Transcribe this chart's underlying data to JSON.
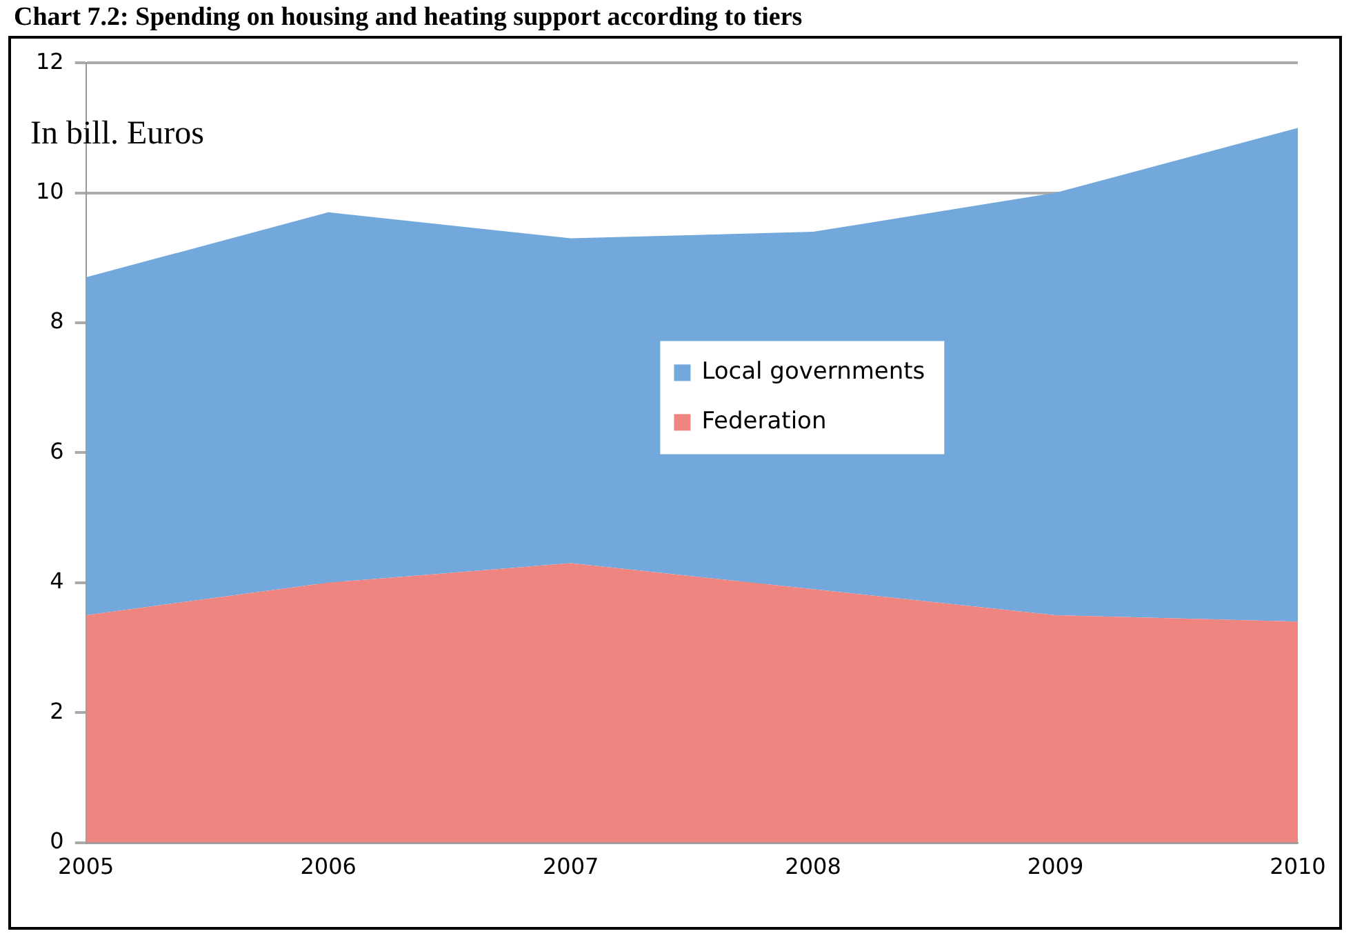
{
  "chart_data": {
    "type": "area",
    "title": "Chart 7.2: Spending on housing and heating support according to tiers",
    "ylabel": "In bill. Euros",
    "categories": [
      "2005",
      "2006",
      "2007",
      "2008",
      "2009",
      "2010"
    ],
    "stacked": true,
    "series": [
      {
        "name": "Federation",
        "color": "#ee8580",
        "values": [
          3.5,
          4.0,
          4.3,
          3.9,
          3.5,
          3.4
        ]
      },
      {
        "name": "Local governments",
        "color": "#72a8dc",
        "values": [
          5.2,
          5.7,
          5.0,
          5.5,
          6.5,
          7.6
        ]
      }
    ],
    "ylim": [
      0,
      12
    ],
    "yticks": [
      0,
      2,
      4,
      6,
      8,
      10,
      12
    ],
    "grid": "y",
    "legend": "center"
  }
}
